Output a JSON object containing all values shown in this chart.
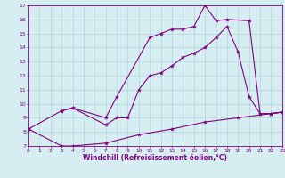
{
  "xlabel": "Windchill (Refroidissement éolien,°C)",
  "bg_color": "#d6eef2",
  "line_color": "#800080",
  "ylim": [
    7,
    17
  ],
  "xlim": [
    0,
    23
  ],
  "yticks": [
    7,
    8,
    9,
    10,
    11,
    12,
    13,
    14,
    15,
    16,
    17
  ],
  "xticks": [
    0,
    1,
    2,
    3,
    4,
    5,
    6,
    7,
    8,
    9,
    10,
    11,
    12,
    13,
    14,
    15,
    16,
    17,
    18,
    19,
    20,
    21,
    22,
    23
  ],
  "line1_x": [
    0,
    3,
    4,
    7,
    8,
    11,
    12,
    13,
    14,
    15,
    16,
    17,
    18,
    20,
    21,
    22,
    23
  ],
  "line1_y": [
    8.2,
    9.5,
    9.7,
    9.0,
    10.5,
    14.7,
    15.0,
    15.3,
    15.3,
    15.5,
    17.0,
    15.9,
    16.0,
    15.9,
    9.3,
    9.3,
    9.4
  ],
  "line2_x": [
    3,
    4,
    7,
    8,
    9,
    10,
    11,
    12,
    13,
    14,
    15,
    16,
    17,
    18,
    19,
    20,
    21,
    22,
    23
  ],
  "line2_y": [
    9.5,
    9.7,
    8.5,
    9.0,
    9.0,
    11.0,
    12.0,
    12.2,
    12.7,
    13.3,
    13.6,
    14.0,
    14.7,
    15.5,
    13.7,
    10.5,
    9.3,
    9.3,
    9.4
  ],
  "line3_x": [
    0,
    3,
    4,
    7,
    10,
    13,
    16,
    19,
    22,
    23
  ],
  "line3_y": [
    8.2,
    7.0,
    7.0,
    7.2,
    7.8,
    8.2,
    8.7,
    9.0,
    9.3,
    9.4
  ],
  "xlabel_fontsize": 5.5,
  "tick_fontsize": 4.5,
  "marker_size": 3,
  "line_width": 0.8
}
